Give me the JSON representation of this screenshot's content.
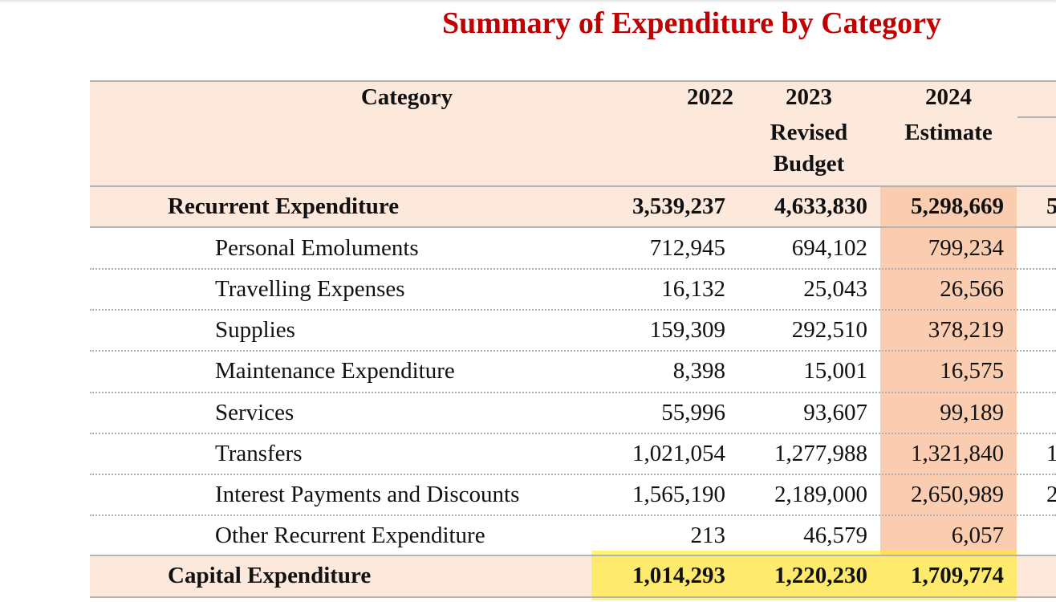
{
  "title": "Summary of Expenditure by Category",
  "colors": {
    "title": "#c00000",
    "header_bg": "#fde8dc",
    "estimate_col": "#fbcdb0",
    "highlight": "#ffec28"
  },
  "header": {
    "category": "Category",
    "col_2022": "2022",
    "col_2023_year": "2023",
    "col_2023_line1": "Revised",
    "col_2023_line2": "Budget",
    "col_2024_year": "2024",
    "col_2024_line1": "Estimate"
  },
  "recurrent": {
    "label": "Recurrent Expenditure",
    "v2022": "3,539,237",
    "v2023": "4,633,830",
    "v2024": "5,298,669",
    "v2025_partial": "5"
  },
  "items": [
    {
      "label": "Personal Emoluments",
      "v2022": "712,945",
      "v2023": "694,102",
      "v2024": "799,234",
      "v2025_partial": ""
    },
    {
      "label": "Travelling Expenses",
      "v2022": "16,132",
      "v2023": "25,043",
      "v2024": "26,566",
      "v2025_partial": ""
    },
    {
      "label": "Supplies",
      "v2022": "159,309",
      "v2023": "292,510",
      "v2024": "378,219",
      "v2025_partial": ""
    },
    {
      "label": "Maintenance Expenditure",
      "v2022": "8,398",
      "v2023": "15,001",
      "v2024": "16,575",
      "v2025_partial": ""
    },
    {
      "label": "Services",
      "v2022": "55,996",
      "v2023": "93,607",
      "v2024": "99,189",
      "v2025_partial": ""
    },
    {
      "label": "Transfers",
      "v2022": "1,021,054",
      "v2023": "1,277,988",
      "v2024": "1,321,840",
      "v2025_partial": "1"
    },
    {
      "label": "Interest Payments and Discounts",
      "v2022": "1,565,190",
      "v2023": "2,189,000",
      "v2024": "2,650,989",
      "v2025_partial": "2"
    },
    {
      "label": "Other Recurrent Expenditure",
      "v2022": "213",
      "v2023": "46,579",
      "v2024": "6,057",
      "v2025_partial": ""
    }
  ],
  "capital": {
    "label": "Capital Expenditure",
    "v2022": "1,014,293",
    "v2023": "1,220,230",
    "v2024": "1,709,774"
  }
}
